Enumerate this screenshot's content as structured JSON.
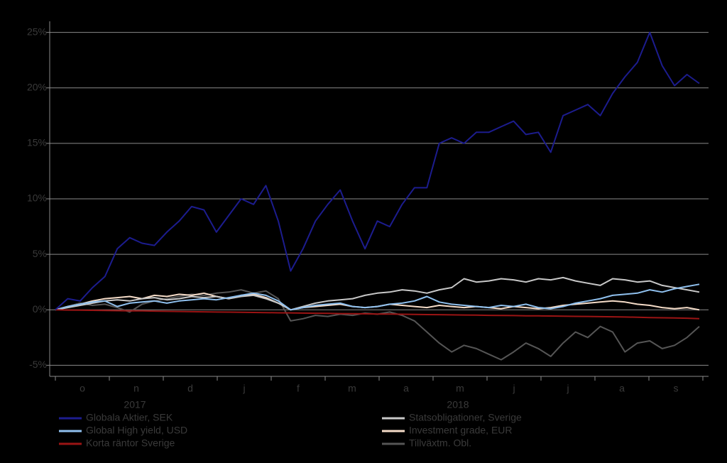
{
  "chart_data": {
    "type": "line",
    "x_tick_labels": [
      "o",
      "n",
      "d",
      "j",
      "f",
      "m",
      "a",
      "m",
      "j",
      "j",
      "a",
      "s"
    ],
    "year_labels": [
      "2017",
      "2018"
    ],
    "ylim": [
      -6,
      26
    ],
    "yticks": [
      {
        "value": -5,
        "label": "-5%"
      },
      {
        "value": 0,
        "label": "0%"
      },
      {
        "value": 5,
        "label": "5%"
      },
      {
        "value": 10,
        "label": "10%"
      },
      {
        "value": 15,
        "label": "15%"
      },
      {
        "value": 20,
        "label": "20%"
      },
      {
        "value": 25,
        "label": "25%"
      }
    ],
    "grid": true,
    "series": [
      {
        "name": "Globala Aktier, SEK",
        "color": "#1c1c8e",
        "values": [
          0,
          1,
          0.8,
          2,
          3,
          5.5,
          6.5,
          6,
          5.8,
          7,
          8,
          9.3,
          9,
          7,
          8.5,
          10,
          9.5,
          11.2,
          8,
          3.5,
          5.5,
          8,
          9.5,
          10.8,
          8,
          5.5,
          8,
          7.5,
          9.5,
          11,
          11,
          15,
          15.5,
          15,
          16,
          16,
          16.5,
          17,
          15.8,
          16,
          14.2,
          17.5,
          18,
          18.5,
          17.5,
          19.5,
          21,
          22.3,
          25,
          22,
          20.2,
          21.2,
          20.4
        ]
      },
      {
        "name": "Global High yield, USD",
        "color": "#8fc0ee",
        "values": [
          0,
          0.3,
          0.5,
          0.7,
          0.8,
          0.3,
          0.6,
          0.7,
          0.8,
          0.6,
          0.8,
          0.9,
          1,
          0.9,
          1.1,
          1.3,
          1.5,
          1.3,
          0.8,
          0,
          0.2,
          0.4,
          0.5,
          0.6,
          0.3,
          0.2,
          0.3,
          0.5,
          0.6,
          0.8,
          1.2,
          0.7,
          0.5,
          0.4,
          0.3,
          0.2,
          0.4,
          0.3,
          0.5,
          0.2,
          0.1,
          0.3,
          0.6,
          0.8,
          1,
          1.3,
          1.4,
          1.5,
          1.8,
          1.6,
          1.9,
          2.1,
          2.3
        ]
      },
      {
        "name": "Korta räntor Sverige",
        "color": "#9a1414",
        "values": [
          0,
          -0.02,
          -0.03,
          -0.05,
          -0.06,
          -0.08,
          -0.1,
          -0.1,
          -0.12,
          -0.14,
          -0.15,
          -0.17,
          -0.18,
          -0.2,
          -0.21,
          -0.22,
          -0.24,
          -0.25,
          -0.27,
          -0.28,
          -0.3,
          -0.31,
          -0.32,
          -0.34,
          -0.35,
          -0.36,
          -0.38,
          -0.39,
          -0.4,
          -0.42,
          -0.43,
          -0.44,
          -0.46,
          -0.47,
          -0.48,
          -0.5,
          -0.51,
          -0.52,
          -0.54,
          -0.55,
          -0.56,
          -0.58,
          -0.59,
          -0.6,
          -0.62,
          -0.63,
          -0.65,
          -0.67,
          -0.7,
          -0.72,
          -0.74,
          -0.76,
          -0.8
        ]
      },
      {
        "name": "Statsobligationer, Sverige",
        "color": "#c8c8c8",
        "values": [
          0,
          0.2,
          0.4,
          0.6,
          0.8,
          0.9,
          0.8,
          1,
          1.1,
          0.9,
          1,
          1.2,
          1.1,
          1.2,
          1,
          1.2,
          1.3,
          1,
          0.6,
          0,
          0.3,
          0.6,
          0.8,
          0.9,
          1,
          1.3,
          1.5,
          1.6,
          1.8,
          1.7,
          1.5,
          1.8,
          2,
          2.8,
          2.5,
          2.6,
          2.8,
          2.7,
          2.5,
          2.8,
          2.7,
          2.9,
          2.6,
          2.4,
          2.2,
          2.8,
          2.7,
          2.5,
          2.6,
          2.2,
          2,
          1.8,
          1.6
        ]
      },
      {
        "name": "Investment grade, EUR",
        "color": "#f5dcc8",
        "values": [
          0,
          0.3,
          0.5,
          0.8,
          1,
          1.1,
          1.2,
          1,
          1.3,
          1.2,
          1.4,
          1.3,
          1.5,
          1.2,
          1,
          1.3,
          1.4,
          1.1,
          0.6,
          0,
          0.2,
          0.3,
          0.4,
          0.5,
          0.3,
          0.2,
          0.3,
          0.5,
          0.4,
          0.3,
          0.2,
          0.4,
          0.3,
          0.2,
          0.3,
          0.2,
          0.1,
          0.3,
          0.2,
          0.1,
          0.2,
          0.4,
          0.5,
          0.6,
          0.7,
          0.8,
          0.7,
          0.5,
          0.4,
          0.2,
          0.1,
          0.2,
          0
        ]
      },
      {
        "name": "Tillväxtm. Obl.",
        "color": "#555555",
        "values": [
          0,
          0.3,
          0.6,
          0.4,
          0.5,
          0.2,
          -0.2,
          0.5,
          0.8,
          1,
          1.2,
          1.4,
          1.3,
          1.5,
          1.6,
          1.8,
          1.5,
          1.7,
          1,
          -1,
          -0.8,
          -0.5,
          -0.6,
          -0.4,
          -0.5,
          -0.3,
          -0.4,
          -0.2,
          -0.5,
          -1,
          -2,
          -3,
          -3.8,
          -3.2,
          -3.5,
          -4,
          -4.5,
          -3.8,
          -3,
          -3.5,
          -4.2,
          -3,
          -2,
          -2.5,
          -1.5,
          -2,
          -3.8,
          -3,
          -2.8,
          -3.5,
          -3.2,
          -2.5,
          -1.5
        ]
      }
    ]
  }
}
